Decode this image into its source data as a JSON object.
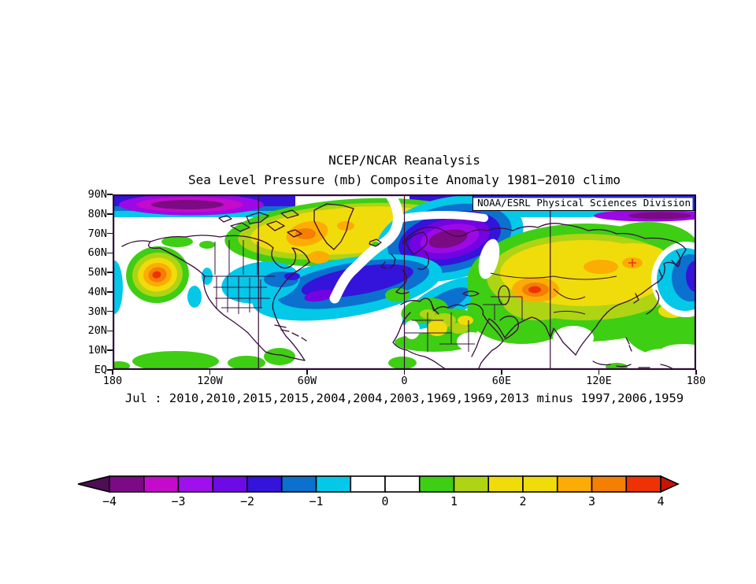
{
  "title": {
    "line1": "NCEP/NCAR Reanalysis",
    "line2": "Sea Level Pressure (mb) Composite Anomaly 1981−2010 climo"
  },
  "map": {
    "credit": "NOAA/ESRL Physical Sciences Division",
    "lat_ticks": [
      "90N",
      "80N",
      "70N",
      "60N",
      "50N",
      "40N",
      "30N",
      "20N",
      "10N",
      "EQ"
    ],
    "lon_ticks": [
      "180",
      "120W",
      "60W",
      "0",
      "60E",
      "120E",
      "180"
    ],
    "gridline_lons": [
      "90W",
      "0",
      "90E"
    ]
  },
  "caption": "Jul : 2010,2010,2015,2015,2004,2004,2003,1969,1969,2013 minus 1997,2006,1959",
  "colorbar": {
    "labels": [
      "−4",
      "−3",
      "−2",
      "−1",
      "0",
      "1",
      "2",
      "3",
      "4"
    ],
    "segments": [
      "#7C0A84",
      "#C40ACB",
      "#A010EC",
      "#6E0AE4",
      "#3413DB",
      "#0C70CE",
      "#04C8E8",
      "#FFFFFF",
      "#FFFFFF",
      "#3ECE14",
      "#AED414",
      "#F0DC0A",
      "#F0DC0A",
      "#FCAC04",
      "#F57E04",
      "#EE3204"
    ],
    "left_arrow": "#4E0D55",
    "right_arrow": "#C81404"
  },
  "colors": {
    "map_background": "#FFFFFF",
    "coastline": "#3A0C3F",
    "grid_line": "#3A0C3F",
    "map_border": "#30083A",
    "credit_accent": "#2228D8",
    "arctic_band_blue": "#3413DB",
    "text": "#000000"
  },
  "chart_data": {
    "type": "heatmap",
    "subtype": "filled-contour-anomaly-map",
    "title": "NCEP/NCAR Reanalysis",
    "subtitle": "Sea Level Pressure (mb) Composite Anomaly 1981−2010 climo",
    "variable": "Sea level pressure composite anomaly (mb)",
    "composite_months": "Jul",
    "composite_years_plus": [
      2010,
      2010,
      2015,
      2015,
      2004,
      2004,
      2003,
      1969,
      1969,
      2013
    ],
    "composite_years_minus": [
      1997,
      2006,
      1959
    ],
    "climatology": "1981−2010",
    "x_axis": {
      "label": "longitude",
      "ticks": [
        "180",
        "120W",
        "60W",
        "0",
        "60E",
        "120E",
        "180"
      ],
      "range_deg": [
        -180,
        180
      ]
    },
    "y_axis": {
      "label": "latitude",
      "ticks": [
        "90N",
        "80N",
        "70N",
        "60N",
        "50N",
        "40N",
        "30N",
        "20N",
        "10N",
        "EQ"
      ],
      "range_deg": [
        0,
        90
      ]
    },
    "scale_range_mb": [
      -4,
      4
    ],
    "contour_interval_mb": 0.5,
    "grid": "meridians at 90W, 0, 90E",
    "legend_position": "bottom horizontal colorbar with end arrows",
    "anomaly_centers": [
      {
        "lon": "152W",
        "lat": "49N",
        "value_mb": 4,
        "note": "strong positive bullseye, Gulf of Alaska"
      },
      {
        "lon": "25E",
        "lat": "66N",
        "value_mb": -4,
        "note": "strong negative center over Scandinavia/NW Russia"
      },
      {
        "lon": "140W",
        "lat": "86N",
        "value_mb": -4,
        "note": "negative band along Arctic 80-90N"
      },
      {
        "lon": "165E",
        "lat": "79N",
        "value_mb": -3,
        "note": "negative patch near pole, western hemisphere edge"
      },
      {
        "lon": "45W",
        "lat": "42N",
        "value_mb": -2.5,
        "note": "negative band across central North Atlantic and eastern US"
      },
      {
        "lon": "60W",
        "lat": "70N",
        "value_mb": 3,
        "note": "positive over Baffin Island / west Greenland"
      },
      {
        "lon": "81E",
        "lat": "40N",
        "value_mb": 3.5,
        "note": "positive center over central Asia"
      },
      {
        "lon": "175E",
        "lat": "47N",
        "value_mb": -2,
        "note": "negative blob, Bering Sea at right map edge"
      },
      {
        "lon": "150W",
        "lat": "5N",
        "value_mb": 1,
        "note": "weak positive band near equator, central Pacific"
      }
    ]
  }
}
